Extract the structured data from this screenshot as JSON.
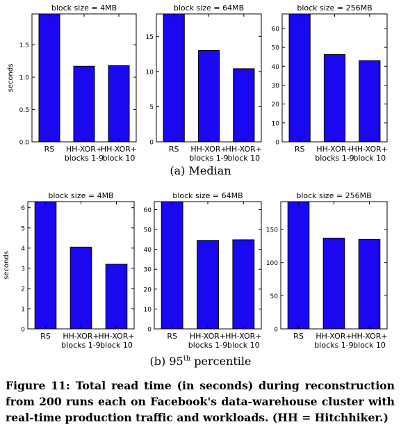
{
  "colors": {
    "bar": "#1a08f0",
    "bar_edge": "#000000",
    "axis": "#000000"
  },
  "subcaptions": {
    "a": "(a) Median",
    "b_prefix": "(b) 95",
    "b_sup": "th",
    "b_suffix": " percentile"
  },
  "figure_caption": "Figure 11: Total read time (in seconds) during reconstruction from 200 runs each on Facebook's data-warehouse cluster with real-time production traffic and workloads. (HH = Hitchhiker.)",
  "chart_data": [
    {
      "type": "bar",
      "title": "block size = 4MB",
      "ylabel": "seconds",
      "categories": [
        [
          "RS"
        ],
        [
          "HH-XOR+",
          "blocks 1-9"
        ],
        [
          "HH-XOR+",
          "block 10"
        ]
      ],
      "values": [
        1.98,
        1.17,
        1.18
      ],
      "ylim": [
        0,
        1.98
      ],
      "yticks": [
        0.0,
        0.5,
        1.0,
        1.5
      ],
      "tick_labels": [
        "0.0",
        "0.5",
        "1.0",
        "1.5"
      ]
    },
    {
      "type": "bar",
      "title": "block size = 64MB",
      "ylabel": "",
      "categories": [
        [
          "RS"
        ],
        [
          "HH-XOR+",
          "blocks 1-9"
        ],
        [
          "HH-XOR+",
          "block 10"
        ]
      ],
      "values": [
        18.2,
        13.0,
        10.4
      ],
      "ylim": [
        0,
        18.2
      ],
      "yticks": [
        0,
        5,
        10,
        15
      ],
      "tick_labels": [
        "0",
        "5",
        "10",
        "15"
      ]
    },
    {
      "type": "bar",
      "title": "block size = 256MB",
      "ylabel": "",
      "categories": [
        [
          "RS"
        ],
        [
          "HH-XOR+",
          "blocks 1-9"
        ],
        [
          "HH-XOR+",
          "block 10"
        ]
      ],
      "values": [
        67.7,
        46.2,
        43.0
      ],
      "ylim": [
        0,
        67.7
      ],
      "yticks": [
        0,
        10,
        20,
        30,
        40,
        50,
        60
      ],
      "tick_labels": [
        "0",
        "10",
        "20",
        "30",
        "40",
        "50",
        "60"
      ]
    },
    {
      "type": "bar",
      "title": "block size = 4MB",
      "ylabel": "seconds",
      "categories": [
        [
          "RS"
        ],
        [
          "HH-XOR+",
          "blocks 1-9"
        ],
        [
          "HH-XOR+",
          "block 10"
        ]
      ],
      "values": [
        6.3,
        4.05,
        3.2
      ],
      "ylim": [
        0,
        6.3
      ],
      "yticks": [
        0,
        1,
        2,
        3,
        4,
        5,
        6
      ],
      "tick_labels": [
        "0",
        "1",
        "2",
        "3",
        "4",
        "5",
        "6"
      ]
    },
    {
      "type": "bar",
      "title": "block size = 64MB",
      "ylabel": "",
      "categories": [
        [
          "RS"
        ],
        [
          "HH-XOR+",
          "blocks 1-9"
        ],
        [
          "HH-XOR+",
          "block 10"
        ]
      ],
      "values": [
        64.0,
        44.5,
        44.8
      ],
      "ylim": [
        0,
        64.0
      ],
      "yticks": [
        0,
        10,
        20,
        30,
        40,
        50,
        60
      ],
      "tick_labels": [
        "0",
        "10",
        "20",
        "30",
        "40",
        "50",
        "60"
      ]
    },
    {
      "type": "bar",
      "title": "block size = 256MB",
      "ylabel": "",
      "categories": [
        [
          "RS"
        ],
        [
          "HH-XOR+",
          "blocks 1-9"
        ],
        [
          "HH-XOR+",
          "block 10"
        ]
      ],
      "values": [
        192,
        137,
        135
      ],
      "ylim": [
        0,
        192
      ],
      "yticks": [
        0,
        50,
        100,
        150
      ],
      "tick_labels": [
        "0",
        "50",
        "100",
        "150"
      ]
    }
  ]
}
